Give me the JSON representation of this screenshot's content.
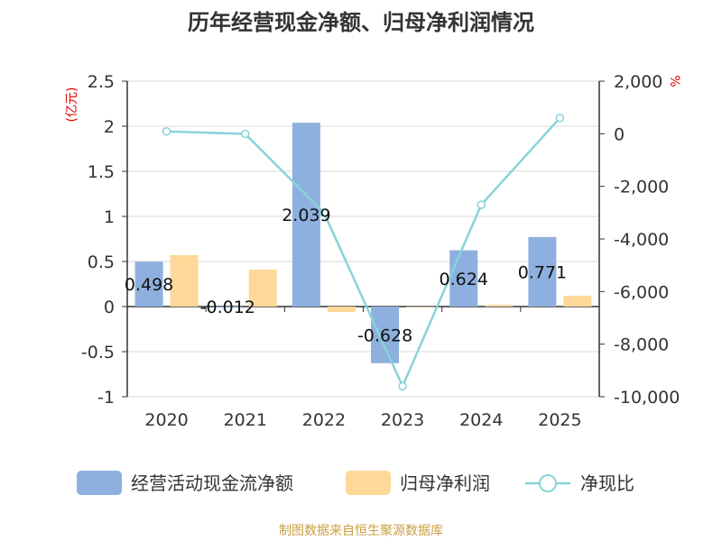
{
  "chart_data": {
    "type": "bar",
    "title": "历年经营现金净额、归母净利润情况",
    "categories": [
      "2020",
      "2021",
      "2022",
      "2023",
      "2024",
      "2025"
    ],
    "series": [
      {
        "name": "经营活动现金流净额",
        "type": "bar",
        "axis": "left",
        "color": "#8eb0de",
        "values": [
          0.498,
          -0.012,
          2.039,
          -0.628,
          0.624,
          0.771
        ],
        "labels": [
          "0.498",
          "-0.012",
          "2.039",
          "-0.628",
          "0.624",
          "0.771"
        ]
      },
      {
        "name": "归母净利润",
        "type": "bar",
        "axis": "left",
        "color": "#fed899",
        "values": [
          0.57,
          0.41,
          -0.06,
          0.0,
          0.02,
          0.12
        ]
      },
      {
        "name": "净现比",
        "type": "line",
        "axis": "right",
        "color": "#87d3d8",
        "values": [
          87,
          -5,
          -3000,
          -9600,
          -2700,
          600
        ]
      }
    ],
    "y_left": {
      "unit": "(亿元)",
      "min": -1,
      "max": 2.5,
      "ticks": [
        2.5,
        2,
        1.5,
        1,
        0.5,
        0,
        -0.5,
        -1
      ],
      "tick_labels": [
        "2.5",
        "2",
        "1.5",
        "1",
        "0.5",
        "0",
        "-0.5",
        "-1"
      ]
    },
    "y_right": {
      "unit": "%",
      "min": -10000,
      "max": 2000,
      "ticks": [
        2000,
        0,
        -2000,
        -4000,
        -6000,
        -8000,
        -10000
      ],
      "tick_labels": [
        "2,000",
        "0",
        "-2,000",
        "-4,000",
        "-6,000",
        "-8,000",
        "-10,000"
      ]
    },
    "legend": [
      "经营活动现金流净额",
      "归母净利润",
      "净现比"
    ],
    "source": "制图数据来自恒生聚源数据库",
    "grid": true
  },
  "colors": {
    "bar1": "#8eb0de",
    "bar2": "#fed899",
    "line": "#87d3d8",
    "source": "#c8a042",
    "unit": "#e00000"
  }
}
